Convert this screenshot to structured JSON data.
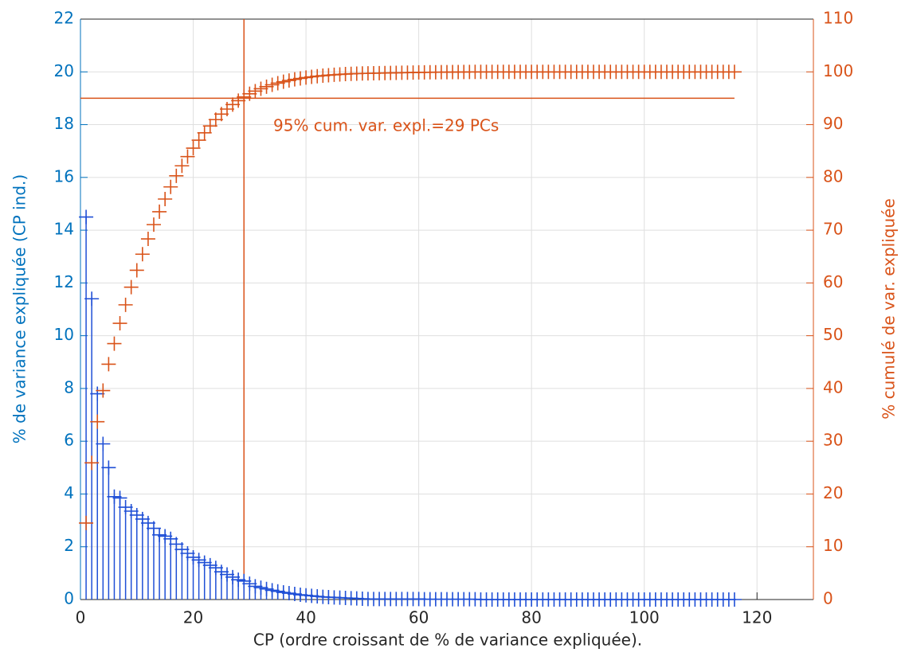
{
  "chart_data": {
    "type": "stem",
    "xlabel": "CP (ordre croissant de % de variance expliquée).",
    "ylabel": "% de variance expliquée (CP ind.)",
    "y2label": "% cumulé de var. expliquée",
    "annotation": "95% cum. var. expl.=29 PCs",
    "reference_lines": {
      "x": 29,
      "y2": 95
    },
    "xlim": [
      0,
      130
    ],
    "xticks": [
      0,
      20,
      40,
      60,
      80,
      100,
      120
    ],
    "ylim": [
      0,
      22
    ],
    "yticks": [
      0,
      2,
      4,
      6,
      8,
      10,
      12,
      14,
      16,
      18,
      20,
      22
    ],
    "y2lim": [
      0,
      110
    ],
    "y2ticks": [
      0,
      10,
      20,
      30,
      40,
      50,
      60,
      70,
      80,
      90,
      100,
      110
    ],
    "grid": true,
    "x": [
      1,
      2,
      3,
      4,
      5,
      6,
      7,
      8,
      9,
      10,
      11,
      12,
      13,
      14,
      15,
      16,
      17,
      18,
      19,
      20,
      21,
      22,
      23,
      24,
      25,
      26,
      27,
      28,
      29,
      30,
      31,
      32,
      33,
      34,
      35,
      36,
      37,
      38,
      39,
      40,
      41,
      42,
      43,
      44,
      45,
      46,
      47,
      48,
      49,
      50,
      51,
      52,
      53,
      54,
      55,
      56,
      57,
      58,
      59,
      60,
      61,
      62,
      63,
      64,
      65,
      66,
      67,
      68,
      69,
      70,
      71,
      72,
      73,
      74,
      75,
      76,
      77,
      78,
      79,
      80,
      81,
      82,
      83,
      84,
      85,
      86,
      87,
      88,
      89,
      90,
      91,
      92,
      93,
      94,
      95,
      96,
      97,
      98,
      99,
      100,
      101,
      102,
      103,
      104,
      105,
      106,
      107,
      108,
      109,
      110,
      111,
      112,
      113,
      114,
      115,
      116
    ],
    "series": [
      {
        "color": "#1f4fd6",
        "axis": "y",
        "values": [
          14.5,
          11.4,
          7.8,
          5.9,
          5.0,
          3.9,
          3.85,
          3.5,
          3.35,
          3.2,
          3.05,
          2.9,
          2.7,
          2.45,
          2.4,
          2.3,
          2.1,
          1.9,
          1.75,
          1.6,
          1.5,
          1.4,
          1.3,
          1.2,
          1.05,
          0.95,
          0.85,
          0.75,
          0.7,
          0.6,
          0.5,
          0.45,
          0.4,
          0.35,
          0.31,
          0.27,
          0.24,
          0.21,
          0.18,
          0.16,
          0.14,
          0.12,
          0.1,
          0.09,
          0.08,
          0.07,
          0.06,
          0.05,
          0.04,
          0.03,
          0.02,
          0.02,
          0.02,
          0.02,
          0.02,
          0.02,
          0.02,
          0.02,
          0.02,
          0.02,
          0.01,
          0.01,
          0.01,
          0.01,
          0.01,
          0.01,
          0.01,
          0.01,
          0.01,
          0.01,
          0,
          0,
          0,
          0,
          0,
          0,
          0,
          0,
          0,
          0,
          0,
          0,
          0,
          0,
          0,
          0,
          0,
          0,
          0,
          0,
          0,
          0,
          0,
          0,
          0,
          0,
          0,
          0,
          0,
          0,
          0,
          0,
          0,
          0,
          0,
          0,
          0,
          0,
          0,
          0,
          0,
          0,
          0,
          0,
          0,
          0
        ]
      },
      {
        "color": "#D95319",
        "axis": "y2",
        "values": [
          14.5,
          25.9,
          33.7,
          39.6,
          44.6,
          48.5,
          52.35,
          55.85,
          59.2,
          62.4,
          65.45,
          68.35,
          71.05,
          73.5,
          75.9,
          78.2,
          80.3,
          82.2,
          83.95,
          85.55,
          87.05,
          88.45,
          89.75,
          90.95,
          92.0,
          92.95,
          93.8,
          94.55,
          95.25,
          95.85,
          96.35,
          96.8,
          97.2,
          97.55,
          97.86,
          98.13,
          98.37,
          98.58,
          98.76,
          98.92,
          99.06,
          99.18,
          99.28,
          99.37,
          99.45,
          99.52,
          99.58,
          99.63,
          99.67,
          99.7,
          99.72,
          99.74,
          99.76,
          99.78,
          99.8,
          99.82,
          99.84,
          99.86,
          99.88,
          99.9,
          99.91,
          99.92,
          99.93,
          99.94,
          99.95,
          99.96,
          99.97,
          99.98,
          99.99,
          100,
          100,
          100,
          100,
          100,
          100,
          100,
          100,
          100,
          100,
          100,
          100,
          100,
          100,
          100,
          100,
          100,
          100,
          100,
          100,
          100,
          100,
          100,
          100,
          100,
          100,
          100,
          100,
          100,
          100,
          100,
          100,
          100,
          100,
          100,
          100,
          100,
          100,
          100,
          100,
          100,
          100,
          100,
          100,
          100,
          100,
          100
        ]
      }
    ]
  }
}
